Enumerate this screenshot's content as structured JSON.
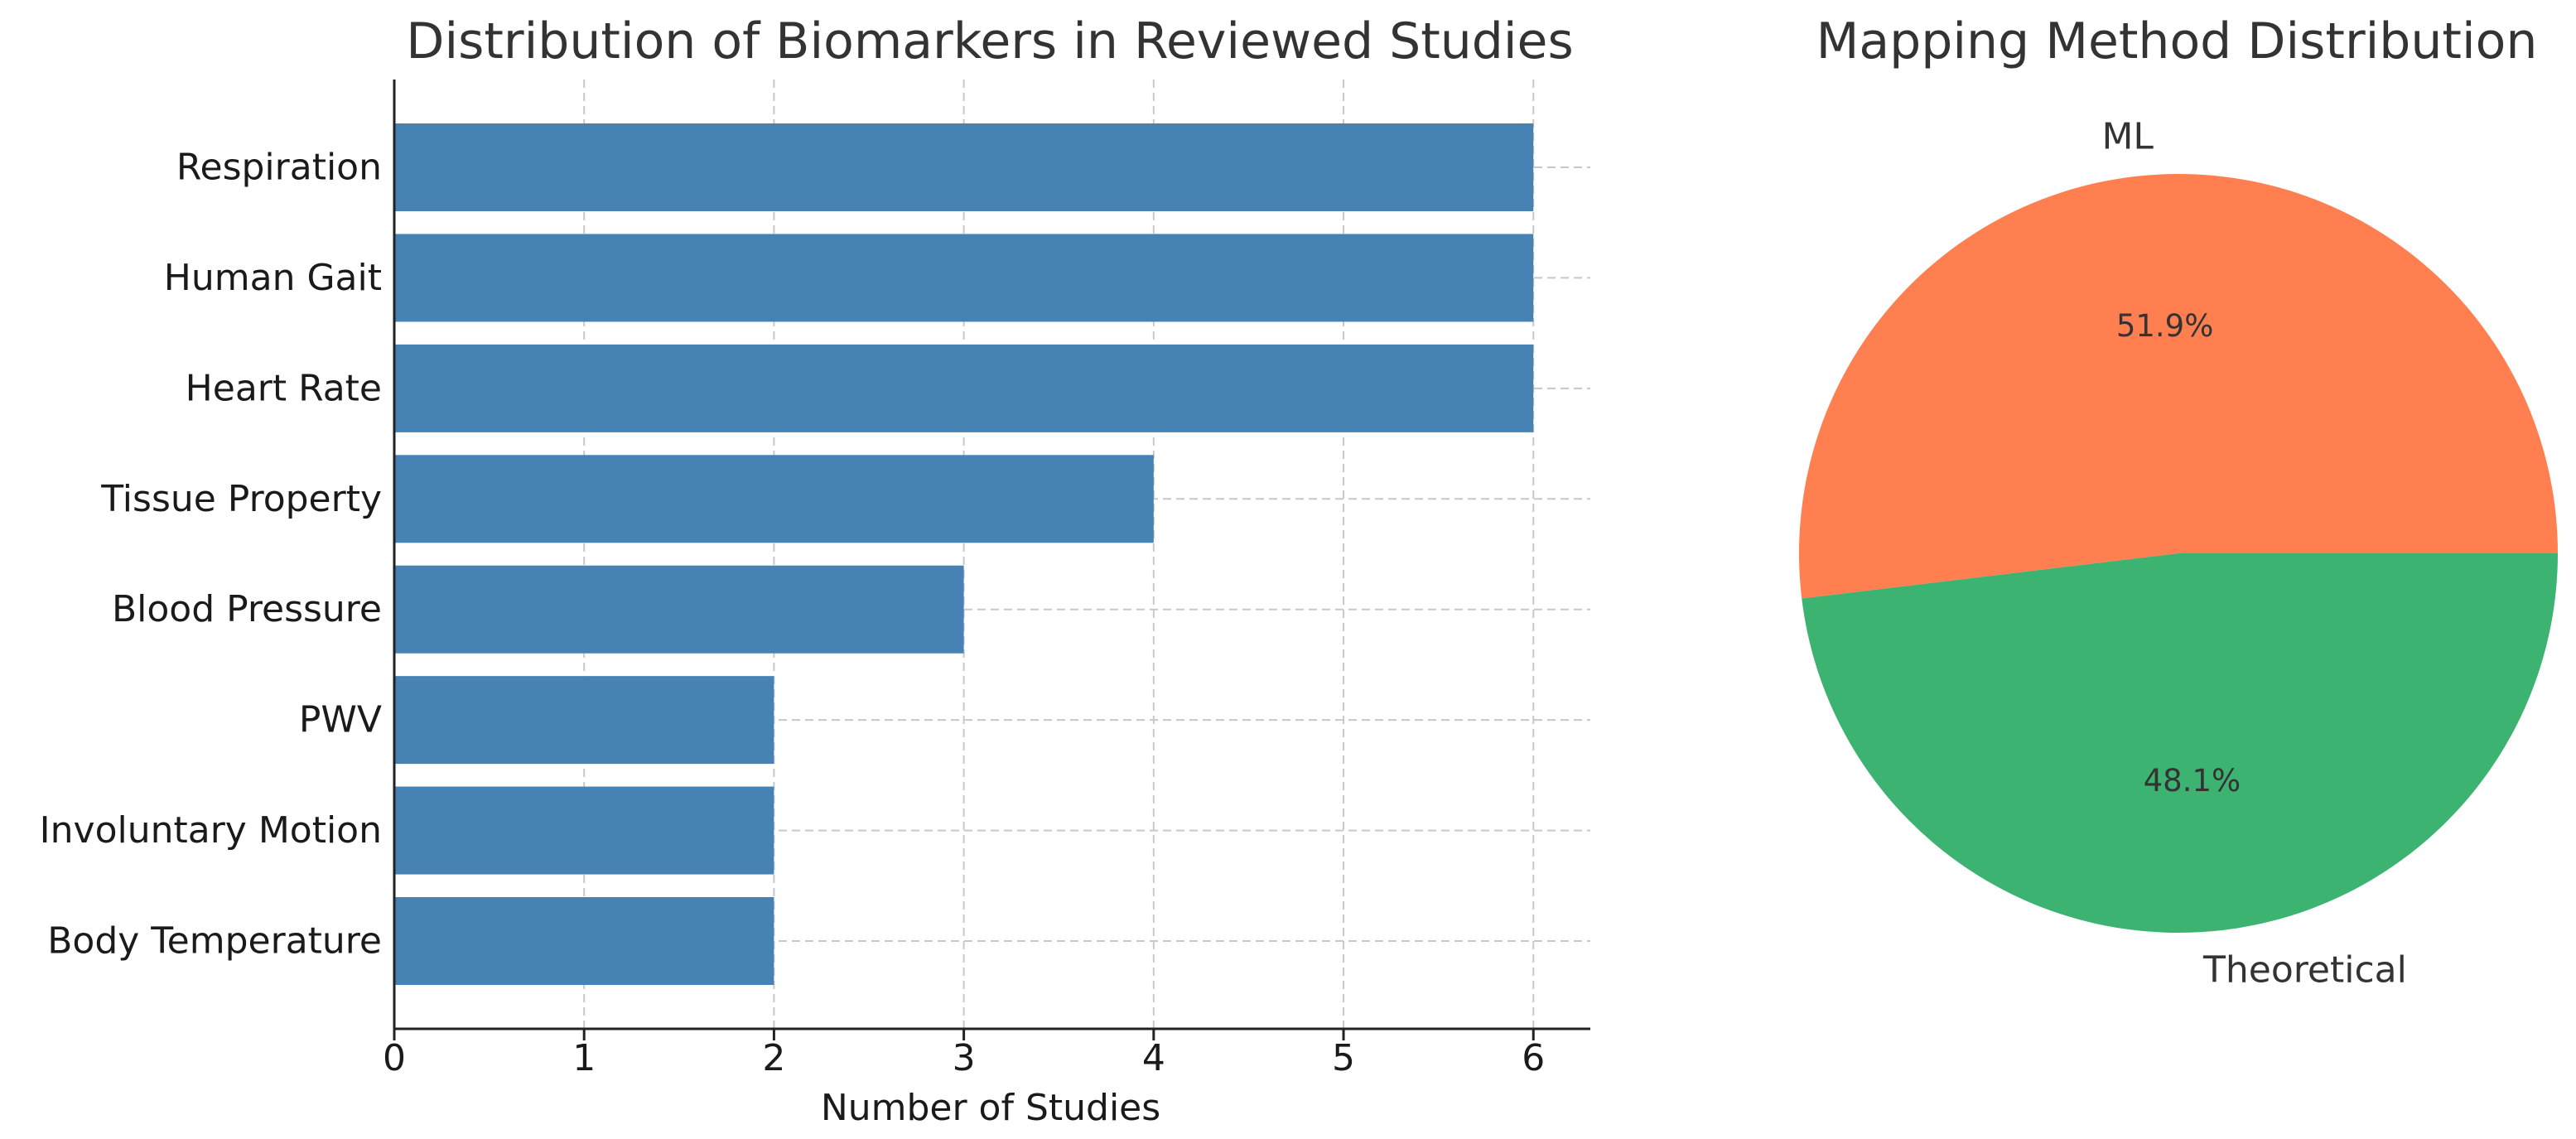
{
  "chart_data": [
    {
      "type": "bar",
      "orientation": "horizontal",
      "title": "Distribution of Biomarkers in Reviewed Studies",
      "xlabel": "Number of Studies",
      "ylabel": "",
      "categories": [
        "Respiration",
        "Human Gait",
        "Heart Rate",
        "Tissue Property",
        "Blood Pressure",
        "PWV",
        "Involuntary Motion",
        "Body Temperature"
      ],
      "values": [
        6,
        6,
        6,
        4,
        3,
        2,
        2,
        2
      ],
      "xlim": [
        0,
        6.3
      ],
      "xticks": [
        0,
        1,
        2,
        3,
        4,
        5,
        6
      ],
      "grid": true,
      "color": "#4682b4"
    },
    {
      "type": "pie",
      "title": "Mapping Method Distribution",
      "slices": [
        {
          "label": "ML",
          "value": 51.9,
          "pct_label": "51.9%",
          "color": "#ff7f50"
        },
        {
          "label": "Theoretical",
          "value": 48.1,
          "pct_label": "48.1%",
          "color": "#3cb371"
        }
      ]
    }
  ]
}
